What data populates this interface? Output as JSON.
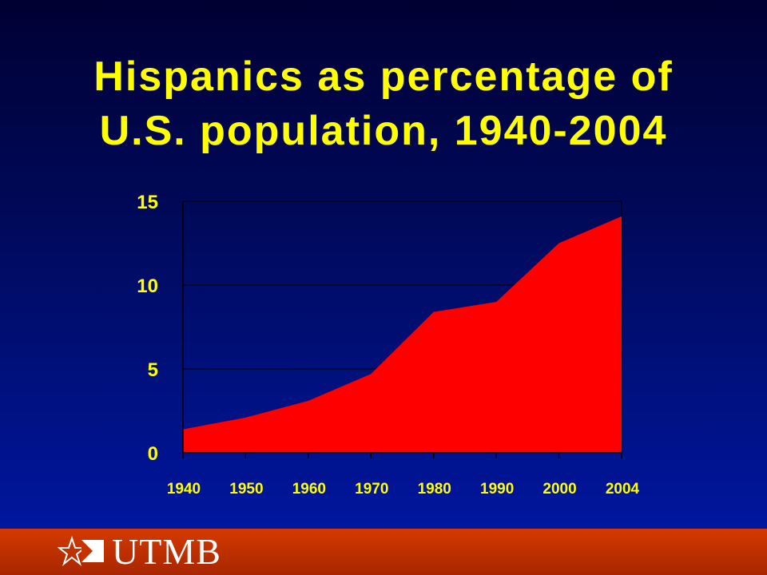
{
  "title": {
    "line1": "Hispanics as percentage of",
    "line2": "U.S. population, 1940-2004"
  },
  "chart_data": {
    "type": "area",
    "categories": [
      "1940",
      "1950",
      "1960",
      "1970",
      "1980",
      "1990",
      "2000",
      "2004"
    ],
    "values": [
      1.4,
      2.1,
      3.1,
      4.7,
      8.4,
      9.0,
      12.5,
      14.1
    ],
    "y_ticks": [
      0,
      5,
      10,
      15
    ],
    "ylim": [
      0,
      15
    ],
    "grid": true,
    "fill_color": "#ff0000",
    "text_color": "#ffff00"
  },
  "footer": {
    "logo_text": "UTMB",
    "color": "#c83200"
  }
}
